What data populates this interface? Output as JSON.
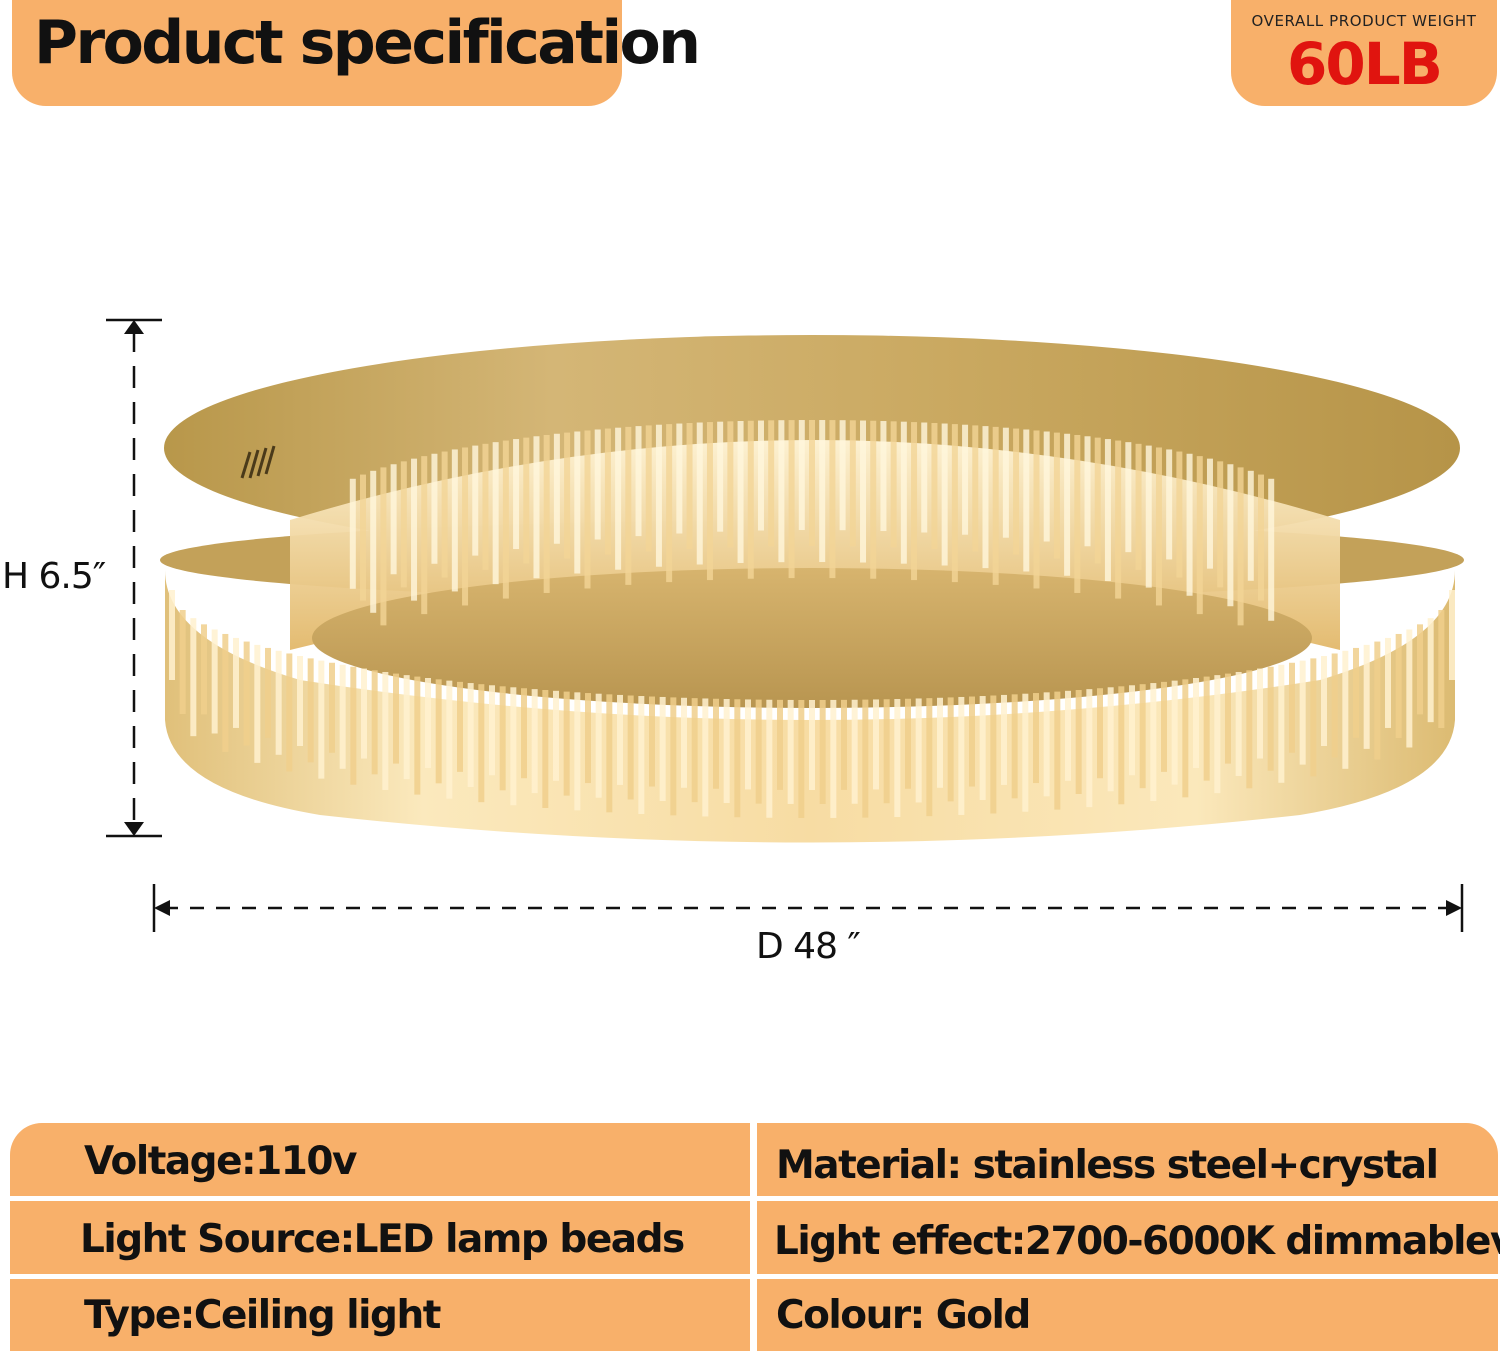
{
  "header": {
    "title": "Product specification"
  },
  "weight_badge": {
    "label": "OVERALL PRODUCT WEIGHT",
    "value": "60LB"
  },
  "dimensions": {
    "height": "H 6.5″",
    "diameter": "D 48 ″"
  },
  "specs": [
    {
      "left": "Voltage:110v",
      "right": "Material: stainless steel+crystal"
    },
    {
      "left": "Light Source:LED lamp beads",
      "right": "Light effect:2700-6000K dimmablev"
    },
    {
      "left": "Type:Ceiling light",
      "right": "Colour: Gold"
    }
  ],
  "colors": {
    "accent": "#f8b06a",
    "weight_value": "#e0140f",
    "gold_frame": "#c9a85a",
    "crystal_light": "#f6d9a0"
  }
}
